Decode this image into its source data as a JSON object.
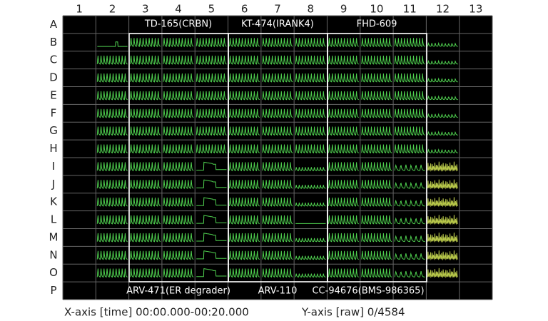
{
  "columns": [
    "1",
    "2",
    "3",
    "4",
    "5",
    "6",
    "7",
    "8",
    "9",
    "10",
    "11",
    "12",
    "13"
  ],
  "rows": [
    "A",
    "B",
    "C",
    "D",
    "E",
    "F",
    "G",
    "H",
    "I",
    "J",
    "K",
    "L",
    "M",
    "N",
    "O",
    "P"
  ],
  "top_groups": [
    "TD-165(CRBN)",
    "KT-474(IRANK4)",
    "FHD-609"
  ],
  "bottom_groups": [
    "ARV-471(ER degrader)",
    "ARV-110",
    "CC-94676(BMS-986365)"
  ],
  "footer": {
    "x_axis": "X-axis [time] 00:00.000-00:20.000",
    "y_axis": "Y-axis [raw] 0/4584"
  }
}
